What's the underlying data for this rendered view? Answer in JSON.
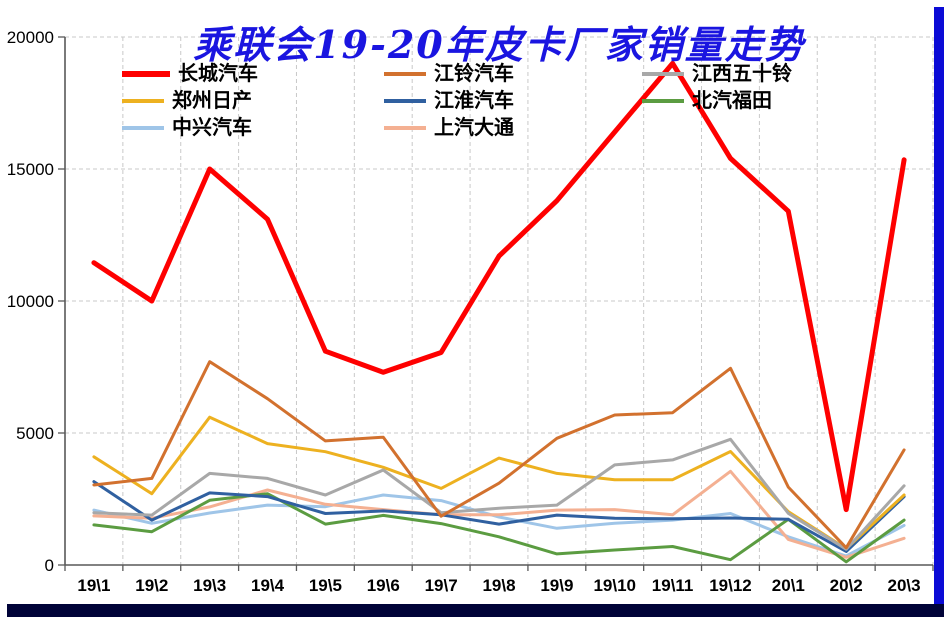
{
  "title": {
    "text": "乘联会19-20年皮卡厂家销量走势",
    "color": "#1a15e0"
  },
  "frame": {
    "right_color": "#0b0bd6",
    "bottom_color": "#000338"
  },
  "chart_data": {
    "type": "line",
    "categories": [
      "19\\1",
      "19\\2",
      "19\\3",
      "19\\4",
      "19\\5",
      "19\\6",
      "19\\7",
      "19\\8",
      "19\\9",
      "19\\10",
      "19\\11",
      "19\\12",
      "20\\1",
      "20\\2",
      "20\\3"
    ],
    "series": [
      {
        "name": "长城汽车",
        "color": "#fe0000",
        "width": 5,
        "values": [
          11450,
          10000,
          15000,
          13100,
          8100,
          7300,
          8050,
          11700,
          13800,
          16400,
          19000,
          15400,
          13400,
          2100,
          15350
        ]
      },
      {
        "name": "江铃汽车",
        "color": "#d2712e",
        "width": 3,
        "values": [
          3030,
          3280,
          7700,
          6300,
          4700,
          4840,
          1850,
          3100,
          4800,
          5680,
          5770,
          7450,
          2950,
          650,
          4360
        ]
      },
      {
        "name": "江西五十铃",
        "color": "#a8a8a8",
        "width": 3,
        "values": [
          1980,
          1890,
          3470,
          3280,
          2650,
          3600,
          1980,
          2150,
          2270,
          3790,
          3980,
          4760,
          1960,
          600,
          3000
        ]
      },
      {
        "name": "郑州日产",
        "color": "#edb120",
        "width": 3,
        "values": [
          4100,
          2700,
          5600,
          4600,
          4290,
          3700,
          2900,
          4050,
          3470,
          3230,
          3230,
          4300,
          2020,
          620,
          2650
        ]
      },
      {
        "name": "江淮汽车",
        "color": "#3060a0",
        "width": 3,
        "values": [
          3160,
          1700,
          2730,
          2590,
          1950,
          2050,
          1900,
          1550,
          1890,
          1770,
          1750,
          1780,
          1730,
          510,
          2590
        ]
      },
      {
        "name": "北汽福田",
        "color": "#5b9c41",
        "width": 3,
        "values": [
          1520,
          1260,
          2450,
          2700,
          1550,
          1880,
          1570,
          1070,
          420,
          570,
          700,
          200,
          1730,
          120,
          1700
        ]
      },
      {
        "name": "中兴汽车",
        "color": "#9fc5e8",
        "width": 3,
        "values": [
          2080,
          1580,
          1970,
          2270,
          2210,
          2650,
          2440,
          1820,
          1390,
          1580,
          1700,
          1950,
          1070,
          340,
          1500
        ]
      },
      {
        "name": "上汽大通",
        "color": "#f4b092",
        "width": 3,
        "values": [
          1860,
          1770,
          2200,
          2840,
          2300,
          2100,
          1900,
          1900,
          2080,
          2100,
          1900,
          3550,
          970,
          290,
          1010
        ]
      }
    ],
    "ylim": [
      0,
      20000
    ],
    "yticks": [
      0,
      5000,
      10000,
      15000,
      20000
    ],
    "grid": true,
    "gridline_color": "#c9c9c9",
    "axis_color": "#595959",
    "legend_position": "top-left",
    "legend_rows": [
      [
        0,
        1,
        2
      ],
      [
        3,
        4,
        5
      ],
      [
        6,
        7
      ]
    ],
    "draw_order": [
      6,
      7,
      5,
      4,
      3,
      2,
      1,
      0
    ]
  }
}
